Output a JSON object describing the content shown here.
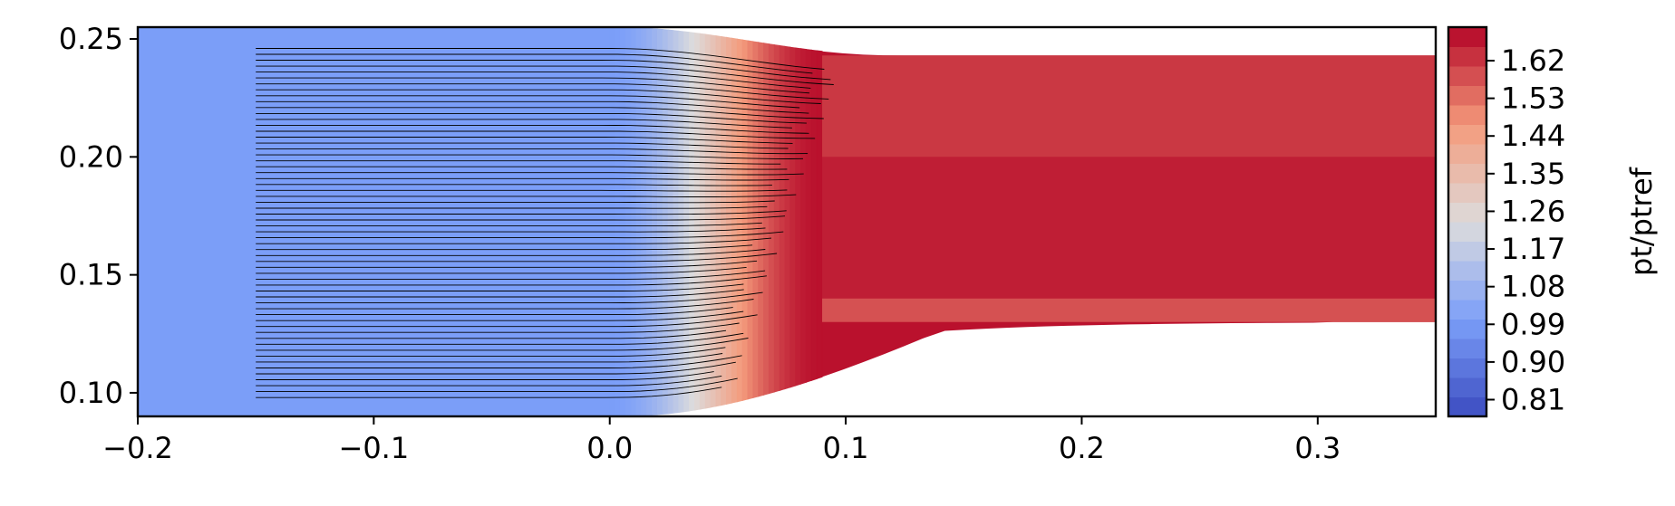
{
  "chart_data": {
    "type": "heatmap",
    "title": "",
    "xlabel": "",
    "ylabel": "",
    "xlim": [
      -0.2,
      0.35
    ],
    "ylim": [
      0.09,
      0.255
    ],
    "x_ticks": [
      -0.2,
      -0.1,
      0.0,
      0.1,
      0.2,
      0.3
    ],
    "x_tick_labels": [
      "−0.2",
      "−0.1",
      "0.0",
      "0.1",
      "0.2",
      "0.3"
    ],
    "y_ticks": [
      0.1,
      0.15,
      0.2,
      0.25
    ],
    "y_tick_labels": [
      "0.10",
      "0.15",
      "0.20",
      "0.25"
    ],
    "colorbar": {
      "label": "pt/ptref",
      "colormap": "coolwarm",
      "range": [
        0.77,
        1.7
      ],
      "levels": 20,
      "ticks": [
        0.81,
        0.9,
        0.99,
        1.08,
        1.17,
        1.26,
        1.35,
        1.44,
        1.53,
        1.62
      ],
      "tick_labels": [
        "0.81",
        "0.90",
        "0.99",
        "1.08",
        "1.17",
        "1.26",
        "1.35",
        "1.44",
        "1.53",
        "1.62"
      ]
    },
    "field": {
      "upstream_value": 1.0,
      "downstream_value": 1.68,
      "transition_x": [
        0.0,
        0.09
      ]
    },
    "streamlines": {
      "count": 60,
      "x_start": -0.15,
      "y_range": [
        0.098,
        0.246
      ],
      "color": "#000000"
    }
  }
}
